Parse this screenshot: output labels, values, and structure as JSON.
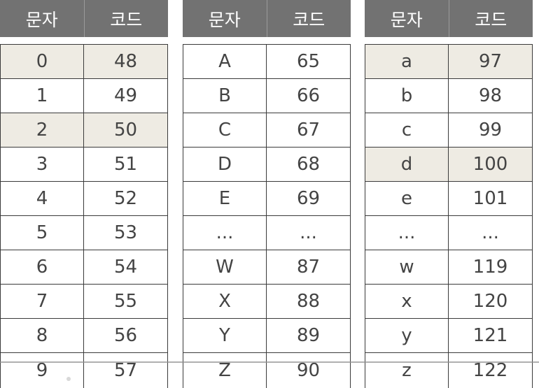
{
  "headers": {
    "char": "문자",
    "code": "코드"
  },
  "tables": [
    {
      "rows": [
        {
          "char": "0",
          "code": "48",
          "highlight": true
        },
        {
          "char": "1",
          "code": "49",
          "highlight": false
        },
        {
          "char": "2",
          "code": "50",
          "highlight": true
        },
        {
          "char": "3",
          "code": "51",
          "highlight": false
        },
        {
          "char": "4",
          "code": "52",
          "highlight": false
        },
        {
          "char": "5",
          "code": "53",
          "highlight": false
        },
        {
          "char": "6",
          "code": "54",
          "highlight": false
        },
        {
          "char": "7",
          "code": "55",
          "highlight": false
        },
        {
          "char": "8",
          "code": "56",
          "highlight": false
        },
        {
          "char": "9",
          "code": "57",
          "highlight": false
        }
      ]
    },
    {
      "rows": [
        {
          "char": "A",
          "code": "65",
          "highlight": false
        },
        {
          "char": "B",
          "code": "66",
          "highlight": false
        },
        {
          "char": "C",
          "code": "67",
          "highlight": false
        },
        {
          "char": "D",
          "code": "68",
          "highlight": false
        },
        {
          "char": "E",
          "code": "69",
          "highlight": false
        },
        {
          "char": "...",
          "code": "...",
          "highlight": false
        },
        {
          "char": "W",
          "code": "87",
          "highlight": false
        },
        {
          "char": "X",
          "code": "88",
          "highlight": false
        },
        {
          "char": "Y",
          "code": "89",
          "highlight": false
        },
        {
          "char": "Z",
          "code": "90",
          "highlight": false
        }
      ]
    },
    {
      "rows": [
        {
          "char": "a",
          "code": "97",
          "highlight": true
        },
        {
          "char": "b",
          "code": "98",
          "highlight": false
        },
        {
          "char": "c",
          "code": "99",
          "highlight": false
        },
        {
          "char": "d",
          "code": "100",
          "highlight": true
        },
        {
          "char": "e",
          "code": "101",
          "highlight": false
        },
        {
          "char": "...",
          "code": "...",
          "highlight": false
        },
        {
          "char": "w",
          "code": "119",
          "highlight": false
        },
        {
          "char": "x",
          "code": "120",
          "highlight": false
        },
        {
          "char": "y",
          "code": "121",
          "highlight": false
        },
        {
          "char": "z",
          "code": "122",
          "highlight": false
        }
      ]
    }
  ],
  "colors": {
    "header_bg": "#727272",
    "header_text": "#ffffff",
    "highlight_bg": "#eeebe3",
    "border": "#3a3a3a",
    "cell_text": "#444444"
  }
}
